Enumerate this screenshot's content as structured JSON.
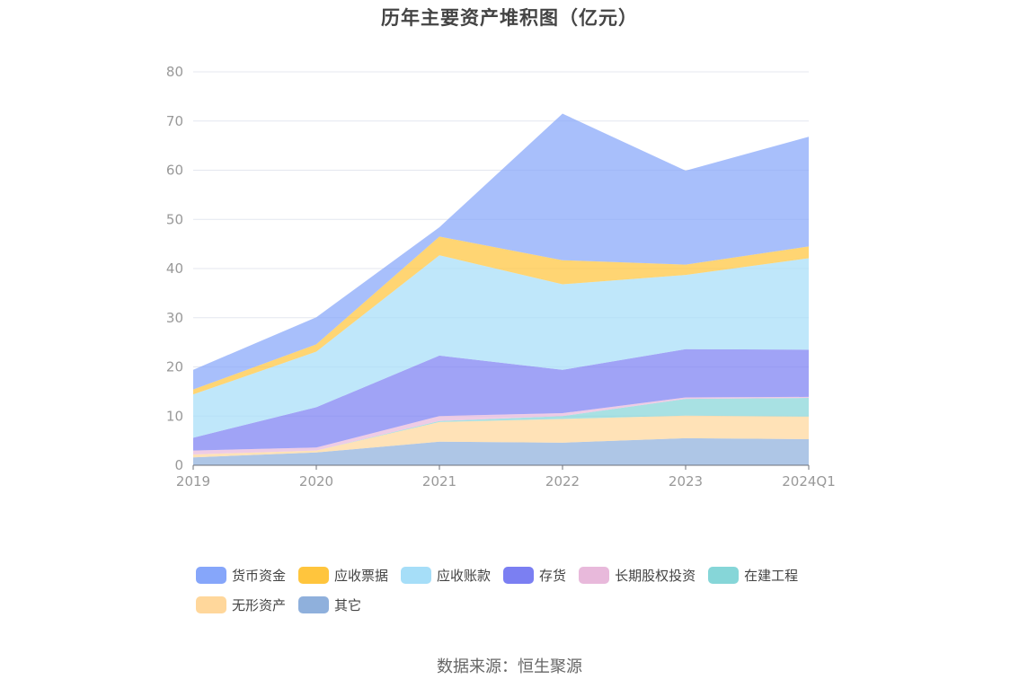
{
  "title": "历年主要资产堆积图（亿元）",
  "source_text": "数据来源：恒生聚源",
  "chart_data": {
    "type": "area",
    "stacked": true,
    "categories": [
      "2019",
      "2020",
      "2021",
      "2022",
      "2023",
      "2024Q1"
    ],
    "ylim": [
      0,
      80
    ],
    "yticks": [
      0,
      10,
      20,
      30,
      40,
      50,
      60,
      70,
      80
    ],
    "grid": true,
    "legend_position": "bottom",
    "series": [
      {
        "name": "其它",
        "color": "#8fb0dc",
        "values": [
          1.6,
          2.6,
          4.8,
          4.6,
          5.5,
          5.3
        ]
      },
      {
        "name": "无形资产",
        "color": "#ffd79b",
        "values": [
          0.6,
          0.4,
          4.0,
          4.8,
          4.6,
          4.6
        ]
      },
      {
        "name": "在建工程",
        "color": "#86d6d8",
        "values": [
          0.0,
          0.0,
          0.2,
          0.6,
          3.4,
          3.8
        ]
      },
      {
        "name": "长期股权投资",
        "color": "#e8b9db",
        "values": [
          0.8,
          0.6,
          1.0,
          0.6,
          0.3,
          0.2
        ]
      },
      {
        "name": "存货",
        "color": "#7b7ff2",
        "values": [
          2.6,
          8.2,
          12.3,
          8.8,
          9.8,
          9.6
        ]
      },
      {
        "name": "应收账款",
        "color": "#a6def8",
        "values": [
          8.8,
          11.3,
          20.4,
          17.4,
          15.1,
          18.6
        ]
      },
      {
        "name": "应收票据",
        "color": "#ffc53d",
        "values": [
          1.0,
          1.5,
          3.8,
          4.9,
          2.1,
          2.4
        ]
      },
      {
        "name": "货币资金",
        "color": "#86a6fa",
        "values": [
          4.0,
          5.5,
          1.9,
          29.8,
          19.1,
          22.3
        ]
      }
    ],
    "legend_order": [
      "货币资金",
      "应收票据",
      "应收账款",
      "存货",
      "长期股权投资",
      "在建工程",
      "无形资产",
      "其它"
    ]
  }
}
